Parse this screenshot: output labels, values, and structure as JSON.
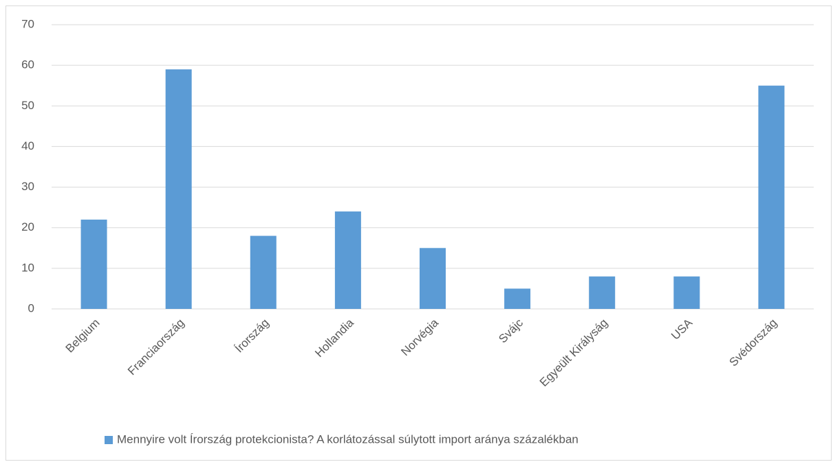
{
  "chart_data": {
    "type": "bar",
    "categories": [
      "Belgium",
      "Franciaország",
      "Írország",
      "Hollandia",
      "Norvégia",
      "Svájc",
      "Egyeült Királyság",
      "USA",
      "Svédország"
    ],
    "series": [
      {
        "name": "Mennyire volt Írország protekcionista? A korlátozással súlytott import aránya százalékban",
        "color": "#5b9bd5",
        "values": [
          22,
          59,
          18,
          24,
          15,
          5,
          8,
          8,
          55
        ]
      }
    ],
    "ylim": [
      0,
      70
    ],
    "yticks": [
      0,
      10,
      20,
      30,
      40,
      50,
      60,
      70
    ],
    "grid": true,
    "legend": "bottom"
  }
}
